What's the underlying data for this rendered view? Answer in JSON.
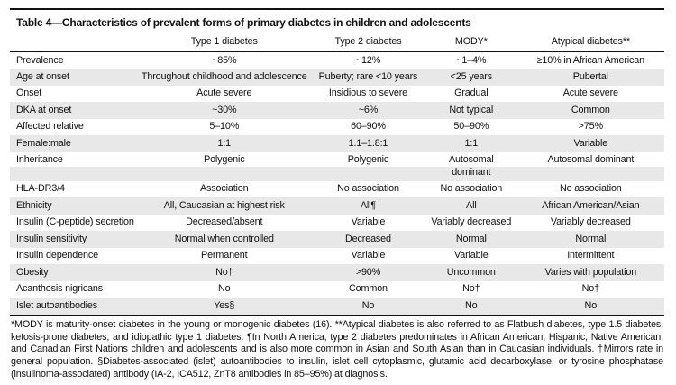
{
  "table": {
    "title": "Table 4—Characteristics of prevalent forms of primary diabetes in children and adolescents",
    "columns": [
      "",
      "Type 1 diabetes",
      "Type 2 diabetes",
      "MODY*",
      "Atypical diabetes**"
    ],
    "rows": [
      {
        "label": "Prevalence",
        "cells": [
          "~85%",
          "~12%",
          "~1–4%",
          "≥10% in African American"
        ],
        "shade": "white"
      },
      {
        "label": "Age at onset",
        "cells": [
          "Throughout childhood and adolescence",
          "Puberty; rare <10 years",
          "<25 years",
          "Pubertal"
        ],
        "shade": "gray"
      },
      {
        "label": "Onset",
        "cells": [
          "Acute severe",
          "Insidious to severe",
          "Gradual",
          "Acute severe"
        ],
        "shade": "white"
      },
      {
        "label": "DKA at onset",
        "cells": [
          "~30%",
          "~6%",
          "Not typical",
          "Common"
        ],
        "shade": "gray"
      },
      {
        "label": "Affected relative",
        "cells": [
          "5–10%",
          "60–90%",
          "50–90%",
          ">75%"
        ],
        "shade": "white"
      },
      {
        "label": "Female:male",
        "cells": [
          "1:1",
          "1.1–1.8:1",
          "1:1",
          "Variable"
        ],
        "shade": "gray"
      },
      {
        "label": "Inheritance",
        "cells": [
          "Polygenic",
          "Polygenic",
          "Autosomal\ndominant",
          "Autosomal dominant"
        ],
        "shade": "split"
      },
      {
        "label": "HLA-DR3/4",
        "cells": [
          "Association",
          "No association",
          "No association",
          "No association"
        ],
        "shade": "white"
      },
      {
        "label": "Ethnicity",
        "cells": [
          "All, Caucasian at highest risk",
          "All¶",
          "All",
          "African American/Asian"
        ],
        "shade": "gray"
      },
      {
        "label": "Insulin (C-peptide) secretion",
        "cells": [
          "Decreased/absent",
          "Variable",
          "Variably decreased",
          "Variably decreased"
        ],
        "shade": "white"
      },
      {
        "label": "Insulin sensitivity",
        "cells": [
          "Normal when controlled",
          "Decreased",
          "Normal",
          "Normal"
        ],
        "shade": "gray"
      },
      {
        "label": "Insulin dependence",
        "cells": [
          "Permanent",
          "Variable",
          "Variable",
          "Intermittent"
        ],
        "shade": "white"
      },
      {
        "label": "Obesity",
        "cells": [
          "No†",
          ">90%",
          "Uncommon",
          "Varies with population"
        ],
        "shade": "gray"
      },
      {
        "label": "Acanthosis nigricans",
        "cells": [
          "No",
          "Common",
          "No†",
          "No†"
        ],
        "shade": "white"
      },
      {
        "label": "Islet autoantibodies",
        "cells": [
          "Yes§",
          "No",
          "No",
          "No"
        ],
        "shade": "gray"
      }
    ],
    "footnote": "*MODY is maturity-onset diabetes in the young or monogenic diabetes (16). **Atypical diabetes is also referred to as Flatbush diabetes, type 1.5 diabetes, ketosis-prone diabetes, and idiopathic type 1 diabetes. ¶In North America, type 2 diabetes predominates in African American, Hispanic, Native American, and Canadian First Nations children and adolescents and is also more common in Asian and South Asian than in Caucasian individuals. †Mirrors rate in general population. §Diabetes-associated (islet) autoantibodies to insulin, islet cell cytoplasmic, glutamic acid decarboxylase, or tyrosine phosphatase (insulinoma-associated) antibody (IA-2, ICA512, ZnT8 antibodies in 85–95%) at diagnosis."
  },
  "colors": {
    "row_shade": "#e8e8e8",
    "rule": "#111111",
    "text": "#111111",
    "background": "#ffffff"
  }
}
